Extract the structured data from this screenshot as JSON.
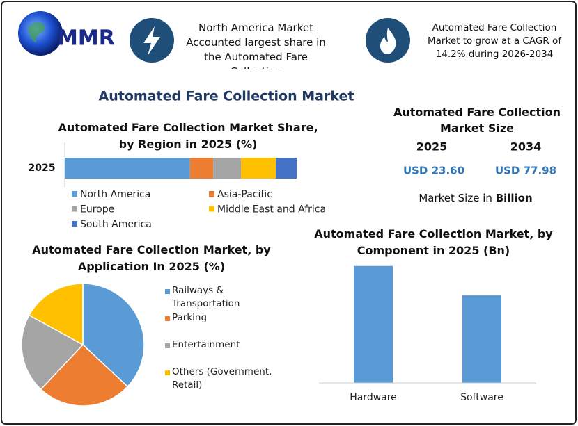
{
  "header": {
    "logo": "MMR",
    "highlight_1": "North America Market Accounted largest share in the Automated Fare Collection",
    "highlight_2": "Automated Fare Collection Market to grow at a CAGR of 14.2% during 2026-2034"
  },
  "title": "Automated Fare Collection Market",
  "market_size": {
    "title": "Automated Fare Collection Market Size",
    "years": [
      "2025",
      "2034"
    ],
    "values": [
      "USD 23.60",
      "USD 77.98"
    ],
    "note": "Market Size in",
    "note_unit": "Billion"
  },
  "chart_data": [
    {
      "type": "stacked-bar",
      "title": "Automated Fare Collection Market Share, by Region in 2025 (%)",
      "categories": [
        "2025"
      ],
      "xlim": [
        0,
        100
      ],
      "series": [
        {
          "name": "North America",
          "color": "#5b9bd5",
          "values": [
            54
          ]
        },
        {
          "name": "Asia-Pacific",
          "color": "#ed7d31",
          "values": [
            10
          ]
        },
        {
          "name": "Europe",
          "color": "#a5a5a5",
          "values": [
            12
          ]
        },
        {
          "name": "Middle East and Africa",
          "color": "#ffc000",
          "values": [
            15
          ]
        },
        {
          "name": "South America",
          "color": "#4472c4",
          "values": [
            9
          ]
        }
      ]
    },
    {
      "type": "pie",
      "title": "Automated Fare Collection Market, by Application In 2025 (%)",
      "categories": [
        "Railways & Transportation",
        "Parking",
        "Entertainment",
        "Others (Government, Retail)"
      ],
      "values": [
        37,
        25,
        21,
        17
      ],
      "colors": [
        "#5b9bd5",
        "#ed7d31",
        "#a5a5a5",
        "#ffc000"
      ]
    },
    {
      "type": "bar",
      "title": "Automated Fare Collection Market, by Component in 2025 (Bn)",
      "categories": [
        "Hardware",
        "Software"
      ],
      "values": [
        13.5,
        10.1
      ],
      "color": "#5b9bd5",
      "ylim": [
        0,
        15
      ]
    }
  ]
}
